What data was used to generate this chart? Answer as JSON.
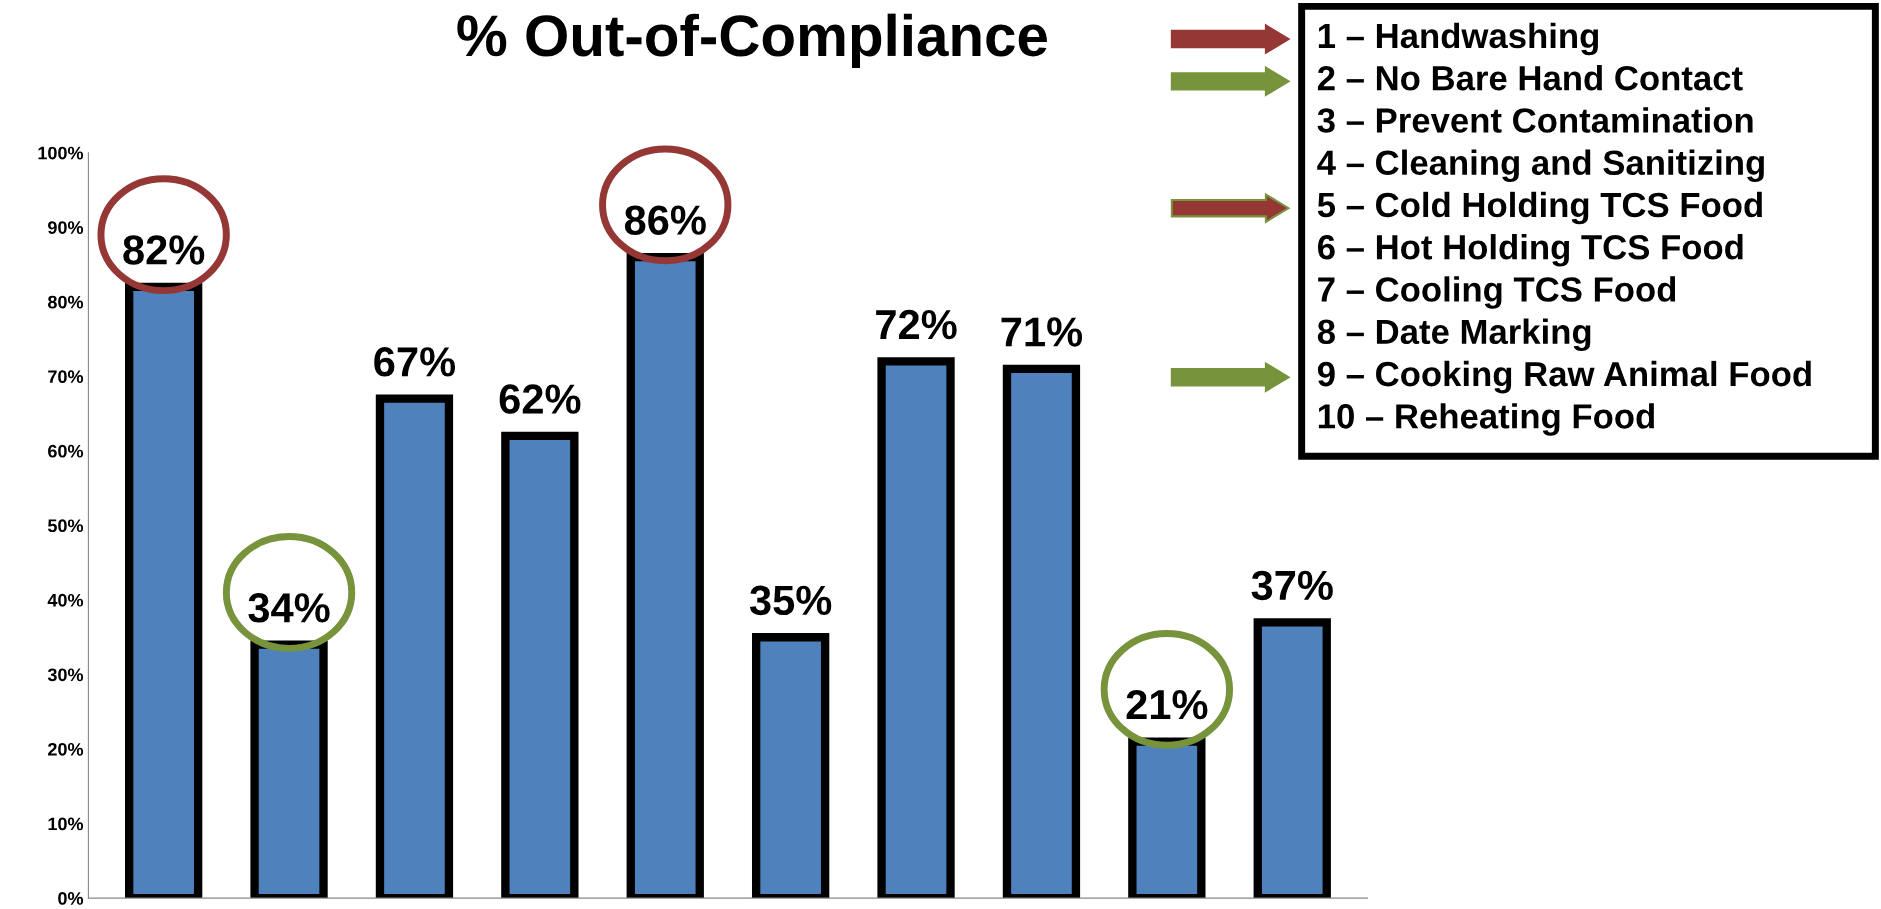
{
  "chart_data": {
    "type": "bar",
    "title": "% Out-of-Compliance",
    "categories": [
      null,
      null,
      null,
      null,
      null,
      null,
      null,
      null,
      null,
      null
    ],
    "values": [
      82,
      34,
      67,
      62,
      86,
      35,
      72,
      71,
      21,
      37
    ],
    "value_labels": [
      "82%",
      "34%",
      "67%",
      "62%",
      "86%",
      "35%",
      "72%",
      "71%",
      "21%",
      "37%"
    ],
    "color": "#4f81bd",
    "ylim": [
      0,
      100
    ],
    "yticks": [
      {
        "value": 0,
        "label": "0%"
      },
      {
        "value": 10,
        "label": "10%"
      },
      {
        "value": 20,
        "label": "20%"
      },
      {
        "value": 30,
        "label": "30%"
      },
      {
        "value": 40,
        "label": "40%"
      },
      {
        "value": 50,
        "label": "50%"
      },
      {
        "value": 60,
        "label": "60%"
      },
      {
        "value": 70,
        "label": "70%"
      },
      {
        "value": 80,
        "label": "80%"
      },
      {
        "value": 90,
        "label": "90%"
      },
      {
        "value": 100,
        "label": "100%"
      }
    ],
    "grid": false,
    "annotations": [
      "1 – Handwashing",
      "2 – No Bare Hand Contact",
      "3 – Prevent Contamination",
      "4 – Cleaning and Sanitizing",
      "5 – Cold Holding TCS Food",
      "6 – Hot Holding TCS Food",
      "7 – Cooling TCS Food",
      "8 – Date Marking",
      "9 – Cooking Raw Animal Food",
      "10 – Reheating Food"
    ]
  }
}
